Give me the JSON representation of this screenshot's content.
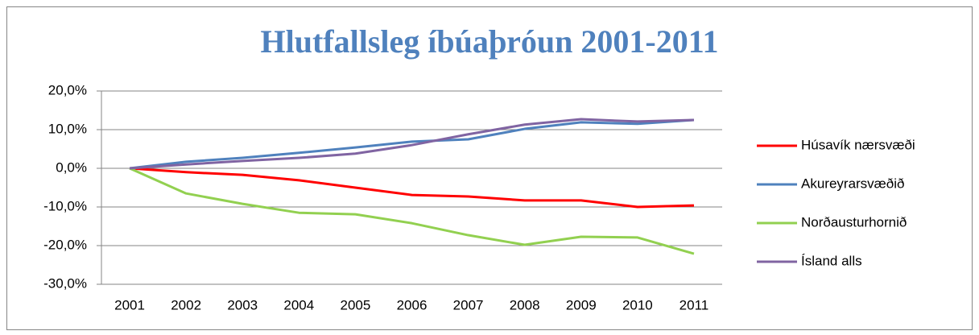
{
  "chart_data": {
    "type": "line",
    "title": "Hlutfallsleg íbúaþróun 2001-2011",
    "categories": [
      "2001",
      "2002",
      "2003",
      "2004",
      "2005",
      "2006",
      "2007",
      "2008",
      "2009",
      "2010",
      "2011"
    ],
    "series": [
      {
        "name": "Húsavík nærsvæði",
        "color": "#ff0000",
        "values": [
          0,
          -1.0,
          -1.7,
          -3.1,
          -5.0,
          -6.9,
          -7.3,
          -8.3,
          -8.3,
          -10.0,
          -9.6
        ]
      },
      {
        "name": "Akureyrarsvæðið",
        "color": "#4f81bd",
        "values": [
          0,
          1.7,
          2.7,
          4.0,
          5.4,
          6.9,
          7.5,
          10.2,
          11.9,
          11.5,
          12.5
        ]
      },
      {
        "name": "Norðausturhornið",
        "color": "#92d050",
        "values": [
          0,
          -6.5,
          -9.2,
          -11.5,
          -11.9,
          -14.2,
          -17.3,
          -19.8,
          -17.7,
          -17.9,
          -22.1
        ]
      },
      {
        "name": "Ísland alls",
        "color": "#8064a2",
        "values": [
          0,
          1.0,
          1.9,
          2.7,
          3.8,
          6.0,
          8.8,
          11.3,
          12.7,
          12.1,
          12.5
        ]
      }
    ],
    "ylim": [
      -30,
      20
    ],
    "yticks": [
      {
        "value": -30,
        "label": "-30,0%"
      },
      {
        "value": -20,
        "label": "-20,0%"
      },
      {
        "value": -10,
        "label": "-10,0%"
      },
      {
        "value": 0,
        "label": "0,0%"
      },
      {
        "value": 10,
        "label": "10,0%"
      },
      {
        "value": 20,
        "label": "20,0%"
      }
    ],
    "grid": true,
    "legend": "right"
  }
}
